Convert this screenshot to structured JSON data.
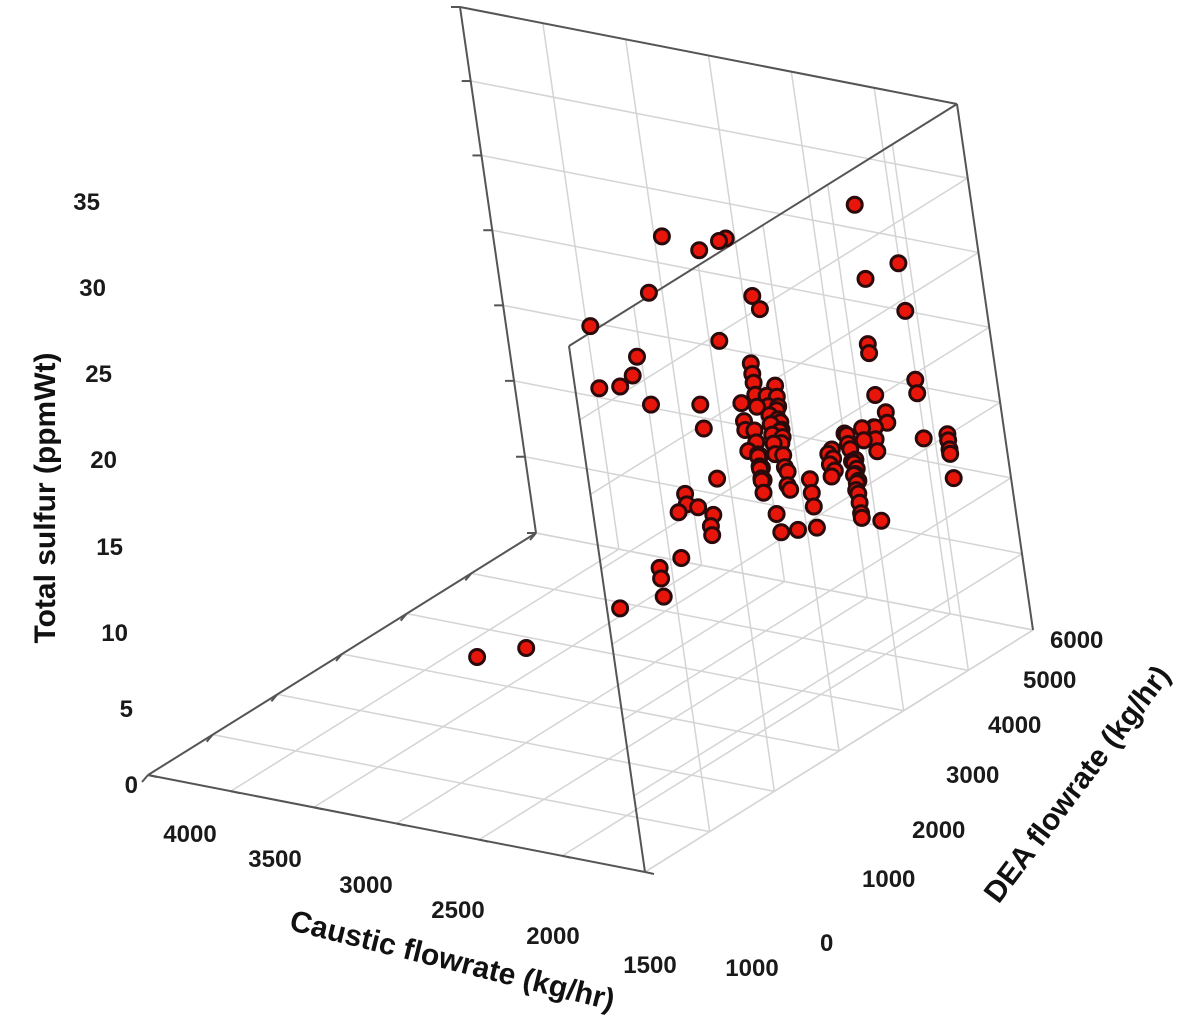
{
  "chart_data": {
    "type": "scatter",
    "dimensions": "3d",
    "zlabel": "Total sulfur (ppmWt)",
    "xlabel": "Caustic flowrate (kg/hr)",
    "ylabel": "DEA flowrate (kg/hr)",
    "z_ticks": [
      "0",
      "5",
      "10",
      "15",
      "20",
      "25",
      "30",
      "35"
    ],
    "x_ticks": [
      "4000",
      "3500",
      "3000",
      "2500",
      "2000",
      "1500",
      "1000"
    ],
    "y_ticks": [
      "0",
      "1000",
      "2000",
      "3000",
      "4000",
      "5000",
      "6000"
    ],
    "xlim": [
      1000,
      4000
    ],
    "ylim": [
      0,
      6000
    ],
    "zlim": [
      0,
      35
    ],
    "grid": true,
    "colors": {
      "marker": "#e8150b",
      "marker_edge": "#2a0a0a",
      "grid": "#d4d4d4",
      "frame": "#555555"
    },
    "points": [
      {
        "x": 3850,
        "y": 5550,
        "z": 12.2
      },
      {
        "x": 3850,
        "y": 5550,
        "z": 11.9
      },
      {
        "x": 3850,
        "y": 5550,
        "z": 13.2
      },
      {
        "x": 3850,
        "y": 5550,
        "z": 12.8
      },
      {
        "x": 3850,
        "y": 5550,
        "z": 10.3
      },
      {
        "x": 3550,
        "y": 5100,
        "z": 8.6
      },
      {
        "x": 3500,
        "y": 4950,
        "z": 8.9
      },
      {
        "x": 3500,
        "y": 4950,
        "z": 9.2
      },
      {
        "x": 3500,
        "y": 4950,
        "z": 9.9
      },
      {
        "x": 3500,
        "y": 4950,
        "z": 10.5
      },
      {
        "x": 3500,
        "y": 4950,
        "z": 11.2
      },
      {
        "x": 3500,
        "y": 4950,
        "z": 11.8
      },
      {
        "x": 3500,
        "y": 4950,
        "z": 12.5
      },
      {
        "x": 3460,
        "y": 5000,
        "z": 11.0
      },
      {
        "x": 3460,
        "y": 5000,
        "z": 12.0
      },
      {
        "x": 3460,
        "y": 5000,
        "z": 12.9
      },
      {
        "x": 3460,
        "y": 5000,
        "z": 13.7
      },
      {
        "x": 3450,
        "y": 5350,
        "z": 14.0
      },
      {
        "x": 3450,
        "y": 5350,
        "z": 14.8
      },
      {
        "x": 3450,
        "y": 5350,
        "z": 15.6
      },
      {
        "x": 3400,
        "y": 5150,
        "z": 12.1
      },
      {
        "x": 3400,
        "y": 5150,
        "z": 12.9
      },
      {
        "x": 3400,
        "y": 5150,
        "z": 13.5
      },
      {
        "x": 3450,
        "y": 5950,
        "z": 15.5
      },
      {
        "x": 3450,
        "y": 5950,
        "z": 18.5
      },
      {
        "x": 3450,
        "y": 5950,
        "z": 19.4
      },
      {
        "x": 3450,
        "y": 5950,
        "z": 24.0
      },
      {
        "x": 3450,
        "y": 5950,
        "z": 27.2
      },
      {
        "x": 3300,
        "y": 5050,
        "z": 13.2
      },
      {
        "x": 3300,
        "y": 5050,
        "z": 14.0
      },
      {
        "x": 3300,
        "y": 5050,
        "z": 14.6
      },
      {
        "x": 3350,
        "y": 5700,
        "z": 16.8
      },
      {
        "x": 3350,
        "y": 5700,
        "z": 17.5
      },
      {
        "x": 3280,
        "y": 5500,
        "z": 15.8
      },
      {
        "x": 3280,
        "y": 5500,
        "z": 16.6
      },
      {
        "x": 3200,
        "y": 4900,
        "z": 9.8
      },
      {
        "x": 3200,
        "y": 4900,
        "z": 11.2
      },
      {
        "x": 3200,
        "y": 4900,
        "z": 12.1
      },
      {
        "x": 3200,
        "y": 4900,
        "z": 13.0
      },
      {
        "x": 3200,
        "y": 5800,
        "z": 17.4
      },
      {
        "x": 3150,
        "y": 5950,
        "z": 20.0
      },
      {
        "x": 3150,
        "y": 5950,
        "z": 22.8
      },
      {
        "x": 3150,
        "y": 5950,
        "z": 23.4
      },
      {
        "x": 3200,
        "y": 5950,
        "z": 27.5
      },
      {
        "x": 3200,
        "y": 5950,
        "z": 32.5
      },
      {
        "x": 3100,
        "y": 5350,
        "z": 14.2
      },
      {
        "x": 3100,
        "y": 5350,
        "z": 15.0
      },
      {
        "x": 3100,
        "y": 5350,
        "z": 15.7
      },
      {
        "x": 3050,
        "y": 5700,
        "z": 17.0
      },
      {
        "x": 3050,
        "y": 5700,
        "z": 17.6
      },
      {
        "x": 2950,
        "y": 5850,
        "z": 18.4
      },
      {
        "x": 2950,
        "y": 5100,
        "z": 11.2
      },
      {
        "x": 2800,
        "y": 5150,
        "z": 11.9
      },
      {
        "x": 2700,
        "y": 5300,
        "z": 13.8
      },
      {
        "x": 2650,
        "y": 5600,
        "z": 16.0
      },
      {
        "x": 2650,
        "y": 5600,
        "z": 17.2
      },
      {
        "x": 2650,
        "y": 5600,
        "z": 19.5
      },
      {
        "x": 2650,
        "y": 5600,
        "z": 20.0
      },
      {
        "x": 2650,
        "y": 5600,
        "z": 20.5
      },
      {
        "x": 2650,
        "y": 5600,
        "z": 22.2
      },
      {
        "x": 2550,
        "y": 5750,
        "z": 17.0
      },
      {
        "x": 2550,
        "y": 5750,
        "z": 18.2
      },
      {
        "x": 2550,
        "y": 5750,
        "z": 19.0
      },
      {
        "x": 2550,
        "y": 5750,
        "z": 19.8
      },
      {
        "x": 2550,
        "y": 5750,
        "z": 20.6
      },
      {
        "x": 2550,
        "y": 5750,
        "z": 21.4
      },
      {
        "x": 2550,
        "y": 5750,
        "z": 22.0
      },
      {
        "x": 2600,
        "y": 5350,
        "z": 15.8
      },
      {
        "x": 2600,
        "y": 5350,
        "z": 16.6
      },
      {
        "x": 2600,
        "y": 5350,
        "z": 17.4
      },
      {
        "x": 2600,
        "y": 5350,
        "z": 18.2
      },
      {
        "x": 2500,
        "y": 5550,
        "z": 17.4
      },
      {
        "x": 2500,
        "y": 5550,
        "z": 18.2
      },
      {
        "x": 2500,
        "y": 5550,
        "z": 19.0
      },
      {
        "x": 2400,
        "y": 5700,
        "z": 18.2
      },
      {
        "x": 2400,
        "y": 5700,
        "z": 19.0
      },
      {
        "x": 2400,
        "y": 5700,
        "z": 19.8
      },
      {
        "x": 2400,
        "y": 5700,
        "z": 20.6
      },
      {
        "x": 2400,
        "y": 5700,
        "z": 21.4
      },
      {
        "x": 2380,
        "y": 5950,
        "z": 20.2
      },
      {
        "x": 2380,
        "y": 5950,
        "z": 20.9
      },
      {
        "x": 2380,
        "y": 5950,
        "z": 21.5
      },
      {
        "x": 2380,
        "y": 5950,
        "z": 22.2
      },
      {
        "x": 2380,
        "y": 5950,
        "z": 22.8
      },
      {
        "x": 2380,
        "y": 5950,
        "z": 23.4
      },
      {
        "x": 2380,
        "y": 5950,
        "z": 24.1
      },
      {
        "x": 2300,
        "y": 5950,
        "z": 23.8
      },
      {
        "x": 2300,
        "y": 5950,
        "z": 24.6
      },
      {
        "x": 2300,
        "y": 5950,
        "z": 25.4
      },
      {
        "x": 2300,
        "y": 5950,
        "z": 26.0
      },
      {
        "x": 2300,
        "y": 5950,
        "z": 26.7
      },
      {
        "x": 2250,
        "y": 5850,
        "z": 21.0
      },
      {
        "x": 2250,
        "y": 5850,
        "z": 22.4
      },
      {
        "x": 2250,
        "y": 5850,
        "z": 23.0
      },
      {
        "x": 2250,
        "y": 5850,
        "z": 24.2
      },
      {
        "x": 2450,
        "y": 5950,
        "z": 23.0
      },
      {
        "x": 2450,
        "y": 5950,
        "z": 24.4
      },
      {
        "x": 2420,
        "y": 5950,
        "z": 29.7
      },
      {
        "x": 2380,
        "y": 5950,
        "z": 30.8
      },
      {
        "x": 2500,
        "y": 4550,
        "z": 14.7
      },
      {
        "x": 2500,
        "y": 4550,
        "z": 15.4
      },
      {
        "x": 2550,
        "y": 4600,
        "z": 14.3
      },
      {
        "x": 2100,
        "y": 4800,
        "z": 11.0
      },
      {
        "x": 2100,
        "y": 4800,
        "z": 12.2
      },
      {
        "x": 2100,
        "y": 4800,
        "z": 12.9
      },
      {
        "x": 2150,
        "y": 5000,
        "z": 13.5
      },
      {
        "x": 1950,
        "y": 4500,
        "z": 10.7
      },
      {
        "x": 2050,
        "y": 5650,
        "z": 17.6
      },
      {
        "x": 2050,
        "y": 5600,
        "z": 16.8
      },
      {
        "x": 2050,
        "y": 5600,
        "z": 16.2
      },
      {
        "x": 2000,
        "y": 5850,
        "z": 20.5
      },
      {
        "x": 2200,
        "y": 5950,
        "z": 35.5
      },
      {
        "x": 2250,
        "y": 5950,
        "z": 35.4
      },
      {
        "x": 2050,
        "y": 5950,
        "z": 35.7
      },
      {
        "x": 1800,
        "y": 5950,
        "z": 38.0
      },
      {
        "x": 1650,
        "y": 5950,
        "z": 35.0
      },
      {
        "x": 2100,
        "y": 5950,
        "z": 29.3
      },
      {
        "x": 1900,
        "y": 5950,
        "z": 26.1
      },
      {
        "x": 1900,
        "y": 5950,
        "z": 24.5
      },
      {
        "x": 1750,
        "y": 5750,
        "z": 19.5
      },
      {
        "x": 1500,
        "y": 5950,
        "z": 31.5
      },
      {
        "x": 1450,
        "y": 5950,
        "z": 30.5
      },
      {
        "x": 1550,
        "y": 5950,
        "z": 28.0
      },
      {
        "x": 1350,
        "y": 5950,
        "z": 30.3
      },
      {
        "x": 1200,
        "y": 5950,
        "z": 31.0
      },
      {
        "x": 1200,
        "y": 5950,
        "z": 35.2
      },
      {
        "x": 1500,
        "y": 4050,
        "z": 10.0
      },
      {
        "x": 1200,
        "y": 3950,
        "z": 10.9
      }
    ]
  }
}
